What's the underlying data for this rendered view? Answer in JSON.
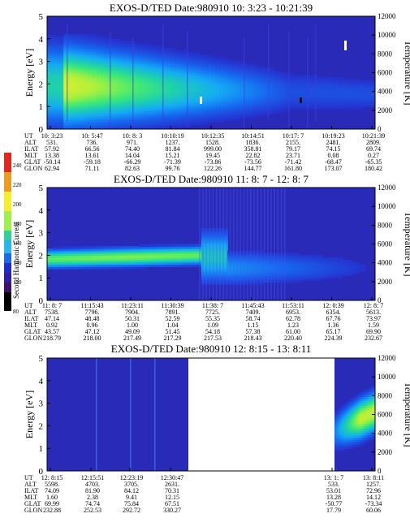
{
  "colorbar": {
    "label": "Second Harmonic Current",
    "ticks": [
      "80",
      "120",
      "140",
      "160",
      "180",
      "200",
      "220",
      "240"
    ]
  },
  "chart_data": [
    {
      "type": "heatmap",
      "title": "EXOS-D/TED   Date:980910  10: 3:23 - 10:21:39",
      "ylabel": "Energy [eV]",
      "y2label": "Temperature [K]",
      "yticks": [
        "0",
        "1",
        "2",
        "3",
        "4",
        "5"
      ],
      "y2ticks": [
        "0",
        "2000",
        "4000",
        "6000",
        "8000",
        "10000",
        "12000"
      ],
      "ylim": [
        0,
        5
      ],
      "y2lim": [
        0,
        12000
      ],
      "table_labels": [
        "UT",
        "ALT",
        "ILAT",
        "MLT",
        "GLAT",
        "GLON"
      ],
      "columns": [
        [
          "10: 3:23",
          "531.",
          "57.92",
          "13.38",
          "-50.14",
          "62.94"
        ],
        [
          "10: 5:47",
          "736.",
          "66.56",
          "13.61",
          "-59.18",
          "71.11"
        ],
        [
          "10: 8: 3",
          "971.",
          "74.40",
          "14.04",
          "-66.29",
          "82.63"
        ],
        [
          "10:10:19",
          "1237.",
          "81.84",
          "15.21",
          "-71.39",
          "99.76"
        ],
        [
          "10:12:35",
          "1528.",
          "999.00",
          "19.45",
          "-73.86",
          "122.26"
        ],
        [
          "10:14:51",
          "1836.",
          "358.81",
          "22.82",
          "-73.56",
          "144.77"
        ],
        [
          "10:17: 7",
          "2155.",
          "79.17",
          "23.71",
          "-71.42",
          "161.80"
        ],
        [
          "10:19:23",
          "2481.",
          "74.15",
          "0.08",
          "-68.47",
          "173.07"
        ],
        [
          "10:21:39",
          "2809.",
          "69.74",
          "0.27",
          "-65.35",
          "180.42"
        ]
      ]
    },
    {
      "type": "heatmap",
      "title": "EXOS-D/TED   Date:980910  11: 8: 7 - 12: 8: 7",
      "ylabel": "Energy [eV]",
      "y2label": "Temperature [K]",
      "yticks": [
        "0",
        "1",
        "2",
        "3",
        "4",
        "5"
      ],
      "y2ticks": [
        "0",
        "2000",
        "4000",
        "6000",
        "8000",
        "10000",
        "12000"
      ],
      "ylim": [
        0,
        5
      ],
      "y2lim": [
        0,
        12000
      ],
      "table_labels": [
        "UT",
        "ALT",
        "ILAT",
        "MLT",
        "GLAT",
        "GLON"
      ],
      "columns": [
        [
          "11: 8: 7",
          "7538.",
          "47.14",
          "0.92",
          "43.57",
          "218.79"
        ],
        [
          "11:15:43",
          "7796.",
          "48.48",
          "0.96",
          "47.12",
          "218.00"
        ],
        [
          "11:23:11",
          "7904.",
          "50.31",
          "1.00",
          "49.09",
          "217.49"
        ],
        [
          "11:30:39",
          "7891.",
          "52.59",
          "1.04",
          "51.45",
          "217.29"
        ],
        [
          "11:38: 7",
          "7725.",
          "55.35",
          "1.09",
          "54.18",
          "217.53"
        ],
        [
          "11:45:43",
          "7409.",
          "58.74",
          "1.15",
          "57.38",
          "218.43"
        ],
        [
          "11:53:11",
          "6953.",
          "62.78",
          "1.23",
          "61.00",
          "220.40"
        ],
        [
          "12: 0:39",
          "6354.",
          "67.76",
          "1.36",
          "65.17",
          "224.39"
        ],
        [
          "12: 8: 7",
          "5613.",
          "73.97",
          "1.59",
          "69.90",
          "232.67"
        ]
      ]
    },
    {
      "type": "heatmap",
      "title": "EXOS-D/TED   Date:980910  12: 8:15 - 13: 8:11",
      "ylabel": "Energy [eV]",
      "y2label": "Temperature [K]",
      "yticks": [
        "0",
        "1",
        "2",
        "3",
        "4",
        "5"
      ],
      "y2ticks": [
        "0",
        "2000",
        "4000",
        "6000",
        "8000",
        "10000",
        "12000"
      ],
      "ylim": [
        0,
        5
      ],
      "y2lim": [
        0,
        12000
      ],
      "table_labels": [
        "UT",
        "ALT",
        "ILAT",
        "MLT",
        "GLAT",
        "GLON"
      ],
      "columns": [
        [
          "12: 8:15",
          "5598.",
          "74.09",
          "1.60",
          "69.99",
          "232.88"
        ],
        [
          "12:15:51",
          "4703.",
          "81.90",
          "2.38",
          "74.74",
          "252.53"
        ],
        [
          "12:23:19",
          "3705.",
          "84.12",
          "9.41",
          "75.84",
          "292.72"
        ],
        [
          "12:30:47",
          "2631.",
          "70.31",
          "12.15",
          "67.51",
          "330.27"
        ],
        [
          "13: 1: 7",
          "533.",
          "53.01",
          "13.28",
          "-50.77",
          "17.79"
        ],
        [
          "13: 8:11",
          "1257.",
          "72.96",
          "14.12",
          "-73.34",
          "60.06"
        ]
      ]
    }
  ]
}
